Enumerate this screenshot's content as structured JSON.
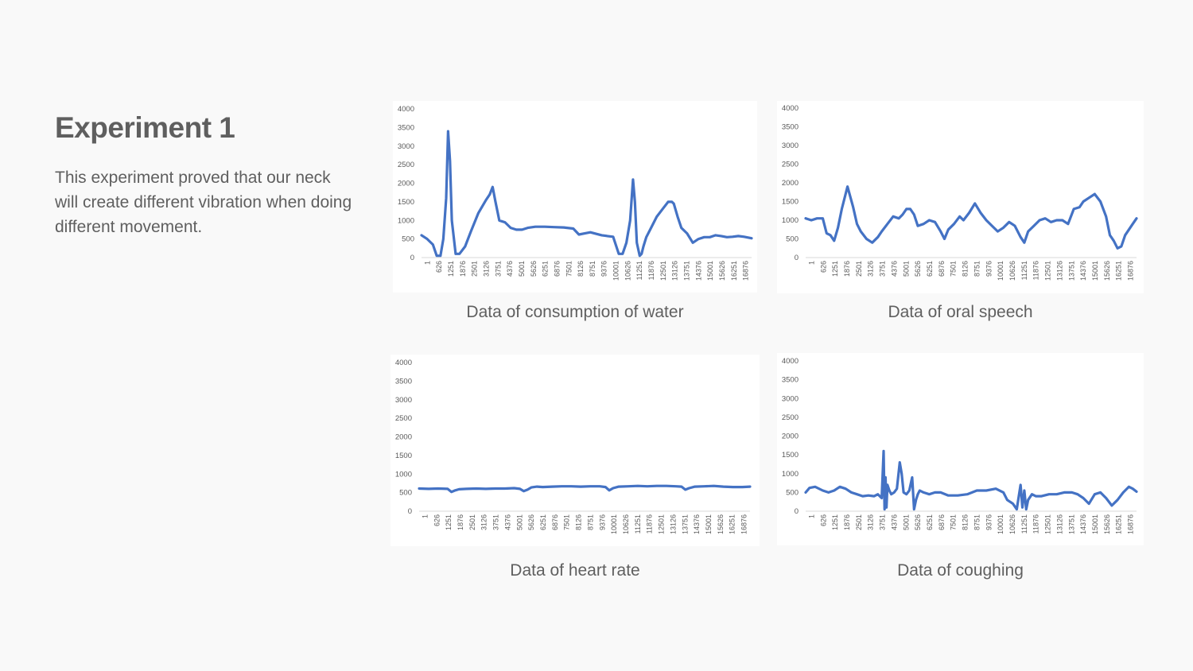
{
  "slide": {
    "title": "Experiment 1",
    "description": "This experiment proved that our neck will create different vibration when doing different movement."
  },
  "colors": {
    "series": "#4472c4",
    "axis": "#d9d9d9",
    "tick_text": "#595959"
  },
  "charts": {
    "water": {
      "caption": "Data of consumption of water"
    },
    "speech": {
      "caption": "Data of oral speech"
    },
    "heart": {
      "caption": "Data of heart rate"
    },
    "cough": {
      "caption": "Data of coughing"
    }
  },
  "chart_data": [
    {
      "id": "water",
      "type": "line",
      "title": "",
      "xlabel": "",
      "ylabel": "",
      "ylim": [
        0,
        4000
      ],
      "yticks": [
        0,
        500,
        1000,
        1500,
        2000,
        2500,
        3000,
        3500,
        4000
      ],
      "xticks": [
        "1",
        "626",
        "1251",
        "1876",
        "2501",
        "3126",
        "3751",
        "4376",
        "5001",
        "5626",
        "6251",
        "6876",
        "7501",
        "8126",
        "8751",
        "9376",
        "10001",
        "10626",
        "11251",
        "11876",
        "12501",
        "13126",
        "13751",
        "14376",
        "15001",
        "15626",
        "16251",
        "16876"
      ],
      "xlim": [
        1,
        17400
      ],
      "grid": false,
      "series": [
        {
          "x": [
            1,
            300,
            600,
            800,
            1000,
            1150,
            1300,
            1400,
            1500,
            1600,
            1800,
            2000,
            2300,
            2600,
            3000,
            3400,
            3600,
            3750,
            3900,
            4100,
            4400,
            4700,
            5000,
            5300,
            5600,
            6000,
            6500,
            7000,
            7500,
            8000,
            8300,
            8600,
            8900,
            9200,
            9500,
            9800,
            10100,
            10400,
            10600,
            10800,
            11000,
            11150,
            11250,
            11350,
            11500,
            11600,
            11700,
            11850,
            12100,
            12400,
            12700,
            13000,
            13200,
            13300,
            13500,
            13700,
            14000,
            14300,
            14600,
            14900,
            15200,
            15500,
            15800,
            16100,
            16400,
            16700,
            17000,
            17400
          ],
          "y": [
            600,
            500,
            350,
            50,
            50,
            500,
            1600,
            3400,
            2600,
            1000,
            100,
            100,
            300,
            700,
            1200,
            1550,
            1700,
            1900,
            1500,
            1000,
            950,
            800,
            750,
            750,
            800,
            830,
            830,
            820,
            810,
            780,
            620,
            650,
            680,
            640,
            600,
            580,
            560,
            100,
            100,
            400,
            1000,
            2100,
            1500,
            400,
            50,
            100,
            300,
            550,
            800,
            1100,
            1300,
            1500,
            1500,
            1450,
            1100,
            800,
            650,
            400,
            500,
            550,
            550,
            600,
            580,
            550,
            560,
            580,
            560,
            520
          ]
        }
      ]
    },
    {
      "id": "speech",
      "type": "line",
      "title": "",
      "xlabel": "",
      "ylabel": "",
      "ylim": [
        0,
        4000
      ],
      "yticks": [
        0,
        500,
        1000,
        1500,
        2000,
        2500,
        3000,
        3500,
        4000
      ],
      "xticks": [
        "1",
        "626",
        "1251",
        "1876",
        "2501",
        "3126",
        "3751",
        "4376",
        "5001",
        "5626",
        "6251",
        "6876",
        "7501",
        "8126",
        "8751",
        "9376",
        "10001",
        "10626",
        "11251",
        "11876",
        "12501",
        "13126",
        "13751",
        "14376",
        "15001",
        "15626",
        "16251",
        "16876"
      ],
      "xlim": [
        1,
        17400
      ],
      "grid": false,
      "series": [
        {
          "x": [
            1,
            300,
            600,
            900,
            1100,
            1300,
            1500,
            1700,
            1900,
            2200,
            2500,
            2700,
            2900,
            3200,
            3500,
            3800,
            4000,
            4300,
            4600,
            4900,
            5100,
            5300,
            5500,
            5700,
            5900,
            6200,
            6500,
            6800,
            7100,
            7300,
            7500,
            7800,
            8100,
            8300,
            8600,
            8900,
            9200,
            9500,
            9800,
            10100,
            10400,
            10700,
            11000,
            11300,
            11500,
            11700,
            12000,
            12300,
            12600,
            12900,
            13200,
            13500,
            13800,
            14100,
            14400,
            14600,
            14900,
            15200,
            15500,
            15800,
            16000,
            16200,
            16400,
            16600,
            16800,
            17000,
            17200,
            17400
          ],
          "y": [
            1050,
            1000,
            1050,
            1050,
            650,
            600,
            450,
            800,
            1300,
            1900,
            1350,
            900,
            700,
            500,
            400,
            550,
            700,
            900,
            1100,
            1050,
            1150,
            1300,
            1300,
            1150,
            850,
            900,
            1000,
            950,
            700,
            500,
            750,
            900,
            1100,
            1000,
            1200,
            1450,
            1200,
            1000,
            850,
            700,
            800,
            950,
            850,
            550,
            400,
            700,
            850,
            1000,
            1050,
            950,
            1000,
            1000,
            900,
            1300,
            1350,
            1500,
            1600,
            1700,
            1500,
            1100,
            600,
            450,
            250,
            300,
            600,
            750,
            900,
            1050
          ]
        }
      ]
    },
    {
      "id": "heart",
      "type": "line",
      "title": "",
      "xlabel": "",
      "ylabel": "",
      "ylim": [
        0,
        4000
      ],
      "yticks": [
        0,
        500,
        1000,
        1500,
        2000,
        2500,
        3000,
        3500,
        4000
      ],
      "xticks": [
        "1",
        "626",
        "1251",
        "1876",
        "2501",
        "3126",
        "3751",
        "4376",
        "5001",
        "5626",
        "6251",
        "6876",
        "7501",
        "8126",
        "8751",
        "9376",
        "10001",
        "10626",
        "11251",
        "11876",
        "12501",
        "13126",
        "13751",
        "14376",
        "15001",
        "15626",
        "16251",
        "16876"
      ],
      "xlim": [
        1,
        17400
      ],
      "grid": false,
      "series": [
        {
          "x": [
            1,
            500,
            1000,
            1500,
            1700,
            1900,
            2100,
            2500,
            3000,
            3500,
            4000,
            4500,
            5000,
            5300,
            5500,
            5700,
            5900,
            6200,
            6500,
            7000,
            7500,
            8000,
            8500,
            9000,
            9500,
            9800,
            10000,
            10200,
            10500,
            11000,
            11500,
            12000,
            12500,
            13000,
            13500,
            13800,
            14000,
            14200,
            14500,
            15000,
            15500,
            16000,
            16500,
            17000,
            17400
          ],
          "y": [
            610,
            600,
            610,
            600,
            520,
            560,
            590,
            600,
            610,
            600,
            610,
            610,
            620,
            600,
            540,
            580,
            640,
            660,
            650,
            660,
            670,
            670,
            660,
            670,
            670,
            650,
            560,
            620,
            660,
            670,
            680,
            670,
            680,
            680,
            670,
            660,
            580,
            620,
            660,
            670,
            680,
            660,
            650,
            650,
            660
          ]
        }
      ]
    },
    {
      "id": "cough",
      "type": "line",
      "title": "",
      "xlabel": "",
      "ylabel": "",
      "ylim": [
        0,
        4000
      ],
      "yticks": [
        0,
        500,
        1000,
        1500,
        2000,
        2500,
        3000,
        3500,
        4000
      ],
      "xticks": [
        "1",
        "626",
        "1251",
        "1876",
        "2501",
        "3126",
        "3751",
        "4376",
        "5001",
        "5626",
        "6251",
        "6876",
        "7501",
        "8126",
        "8751",
        "9376",
        "10001",
        "10626",
        "11251",
        "11876",
        "12501",
        "13126",
        "13751",
        "14376",
        "15001",
        "15626",
        "16251",
        "16876"
      ],
      "xlim": [
        1,
        17400
      ],
      "grid": false,
      "series": [
        {
          "x": [
            1,
            200,
            500,
            900,
            1200,
            1500,
            1800,
            2100,
            2400,
            2700,
            3000,
            3300,
            3600,
            3800,
            4000,
            4100,
            4150,
            4200,
            4250,
            4300,
            4400,
            4500,
            4650,
            4800,
            4950,
            5050,
            5150,
            5300,
            5450,
            5600,
            5700,
            5800,
            5900,
            6000,
            6200,
            6500,
            6800,
            7100,
            7500,
            8000,
            8500,
            9000,
            9500,
            10000,
            10400,
            10600,
            10900,
            11100,
            11300,
            11400,
            11500,
            11600,
            11700,
            11900,
            12100,
            12400,
            12800,
            13200,
            13600,
            14000,
            14300,
            14600,
            14900,
            15200,
            15500,
            15800,
            16100,
            16400,
            16700,
            17000,
            17200,
            17400
          ],
          "y": [
            500,
            620,
            650,
            550,
            500,
            550,
            650,
            600,
            500,
            450,
            400,
            420,
            400,
            450,
            350,
            1600,
            50,
            900,
            100,
            700,
            550,
            450,
            500,
            600,
            1300,
            1000,
            500,
            450,
            550,
            900,
            50,
            300,
            450,
            550,
            500,
            450,
            500,
            500,
            420,
            420,
            450,
            550,
            550,
            600,
            500,
            300,
            200,
            50,
            700,
            100,
            550,
            50,
            300,
            450,
            400,
            400,
            450,
            450,
            500,
            500,
            450,
            350,
            200,
            450,
            500,
            350,
            150,
            300,
            500,
            650,
            600,
            520
          ]
        }
      ]
    }
  ]
}
